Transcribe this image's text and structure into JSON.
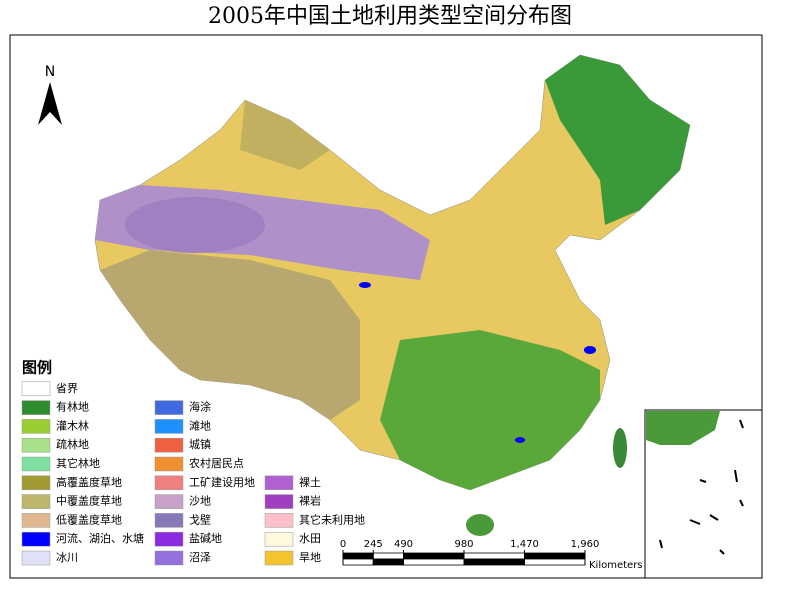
{
  "title": "2005年中国土地利用类型空间分布图",
  "north": "N",
  "legend": {
    "title": "图例",
    "columns": [
      [
        {
          "label": "省界",
          "color": "#ffffff"
        },
        {
          "label": "有林地",
          "color": "#2e8b2e"
        },
        {
          "label": "灌木林",
          "color": "#9acd32"
        },
        {
          "label": "疏林地",
          "color": "#a8e08a"
        },
        {
          "label": "其它林地",
          "color": "#7ee0a0"
        },
        {
          "label": "高覆盖度草地",
          "color": "#a09a30"
        },
        {
          "label": "中覆盖度草地",
          "color": "#bdb76b"
        },
        {
          "label": "低覆盖度草地",
          "color": "#e0b890"
        },
        {
          "label": "河流、湖泊、水塘",
          "color": "#0000ff"
        },
        {
          "label": "冰川",
          "color": "#e0e0f8"
        }
      ],
      [
        {
          "label": "海涂",
          "color": "#4169e1"
        },
        {
          "label": "滩地",
          "color": "#1e90ff"
        },
        {
          "label": "城镇",
          "color": "#f06040"
        },
        {
          "label": "农村居民点",
          "color": "#f09030"
        },
        {
          "label": "工矿建设用地",
          "color": "#f08080"
        },
        {
          "label": "沙地",
          "color": "#c8a0c8"
        },
        {
          "label": "戈壁",
          "color": "#8878b8"
        },
        {
          "label": "盐碱地",
          "color": "#8a2be2"
        },
        {
          "label": "沼泽",
          "color": "#9370db"
        }
      ],
      [
        {
          "label": "裸土",
          "color": "#b060d0"
        },
        {
          "label": "裸岩",
          "color": "#a040c0"
        },
        {
          "label": "其它未利用地",
          "color": "#ffc0cb"
        },
        {
          "label": "水田",
          "color": "#fff8dc"
        },
        {
          "label": "旱地",
          "color": "#f4c430"
        }
      ]
    ]
  },
  "scale_bar": {
    "unit": "Kilometers",
    "lim": [
      0,
      1960
    ],
    "ticks": [
      0,
      245,
      490,
      980,
      {
        "value": 1470,
        "label": "1,470"
      },
      {
        "value": 1960,
        "label": "1,960"
      }
    ]
  }
}
